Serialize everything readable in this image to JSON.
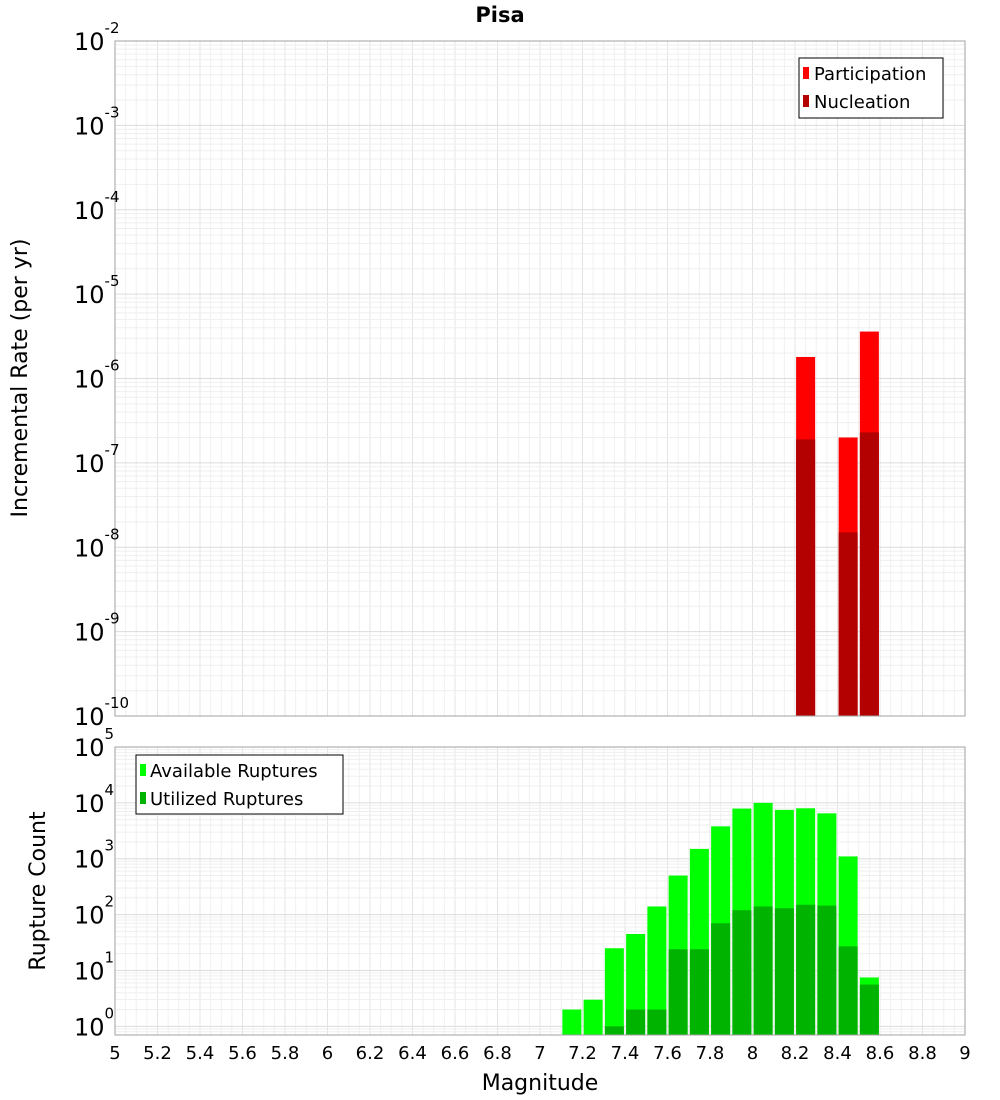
{
  "chart_data": [
    {
      "type": "bar",
      "title": "Pisa",
      "xlabel": "Magnitude",
      "ylabel": "Incremental Rate (per yr)",
      "y_scale": "log",
      "ylim": [
        1e-10,
        0.01
      ],
      "xlim": [
        5,
        9
      ],
      "grid": true,
      "legend_position": "top-right",
      "x": [
        8.25,
        8.45,
        8.55
      ],
      "series": [
        {
          "name": "Participation",
          "color": "#ff0000",
          "values": [
            1.8e-06,
            2e-07,
            3.6e-06
          ]
        },
        {
          "name": "Nucleation",
          "color": "#b30000",
          "values": [
            1.9e-07,
            1.5e-08,
            2.3e-07
          ]
        }
      ]
    },
    {
      "type": "bar",
      "title": "",
      "xlabel": "Magnitude",
      "ylabel": "Rupture Count",
      "y_scale": "log",
      "ylim": [
        0.7,
        100000
      ],
      "xlim": [
        5,
        9
      ],
      "grid": true,
      "legend_position": "top-left",
      "x": [
        7.15,
        7.25,
        7.35,
        7.45,
        7.55,
        7.65,
        7.75,
        7.85,
        7.95,
        8.05,
        8.15,
        8.25,
        8.35,
        8.45,
        8.55
      ],
      "series": [
        {
          "name": "Available Ruptures",
          "color": "#00ff00",
          "values": [
            2,
            3,
            25,
            45,
            140,
            500,
            1500,
            3800,
            7900,
            10000,
            7500,
            8000,
            6500,
            1100,
            7.5
          ]
        },
        {
          "name": "Utilized Ruptures",
          "color": "#00b300",
          "values": [
            0.7,
            0.7,
            1,
            2,
            2,
            24,
            24,
            70,
            120,
            140,
            130,
            150,
            145,
            27,
            5.6
          ]
        }
      ]
    }
  ],
  "x_ticks": [
    "5",
    "5.2",
    "5.4",
    "5.6",
    "5.8",
    "6",
    "6.2",
    "6.4",
    "6.6",
    "6.8",
    "7",
    "7.2",
    "7.4",
    "7.6",
    "7.8",
    "8",
    "8.2",
    "8.4",
    "8.6",
    "8.8",
    "9"
  ],
  "top_y_ticks": [
    {
      "base": "10",
      "exp": "-2"
    },
    {
      "base": "10",
      "exp": "-3"
    },
    {
      "base": "10",
      "exp": "-4"
    },
    {
      "base": "10",
      "exp": "-5"
    },
    {
      "base": "10",
      "exp": "-6"
    },
    {
      "base": "10",
      "exp": "-7"
    },
    {
      "base": "10",
      "exp": "-8"
    },
    {
      "base": "10",
      "exp": "-9"
    },
    {
      "base": "10",
      "exp": "-10"
    }
  ],
  "bottom_y_ticks": [
    {
      "base": "10",
      "exp": "5"
    },
    {
      "base": "10",
      "exp": "4"
    },
    {
      "base": "10",
      "exp": "3"
    },
    {
      "base": "10",
      "exp": "2"
    },
    {
      "base": "10",
      "exp": "1"
    },
    {
      "base": "10",
      "exp": "0"
    }
  ]
}
